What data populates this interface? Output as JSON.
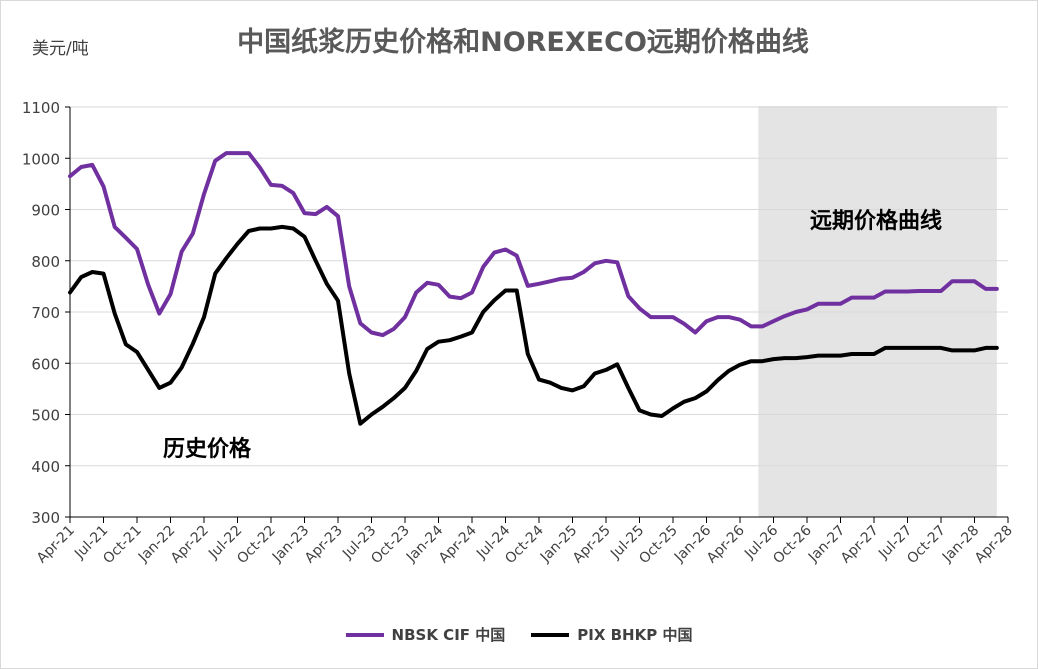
{
  "title": "中国纸浆历史价格和NOREXECO远期价格曲线",
  "unit_label": "美元/吨",
  "annotations": {
    "history": "历史价格",
    "forward": "远期价格曲线"
  },
  "colors": {
    "nbsk": "#7030a0",
    "pix": "#000000",
    "forward_shade": "#e4e4e4",
    "grid": "#d9d9d9"
  },
  "chart_data": {
    "type": "line",
    "title": "中国纸浆历史价格和NOREXECO远期价格曲线",
    "ylabel": "美元/吨",
    "ylim": [
      300,
      1100
    ],
    "yticks": [
      300,
      400,
      500,
      600,
      700,
      800,
      900,
      1000,
      1100
    ],
    "grid": true,
    "legend_position": "bottom",
    "xtick_labels": [
      "Apr-21",
      "Jul-21",
      "Oct-21",
      "Jan-22",
      "Apr-22",
      "Jul-22",
      "Oct-22",
      "Jan-23",
      "Apr-23",
      "Jul-23",
      "Oct-23",
      "Jan-24",
      "Apr-24",
      "Jul-24",
      "Oct-24",
      "Jan-25",
      "Apr-25",
      "Jul-25",
      "Oct-25",
      "Jan-26",
      "Apr-26",
      "Jul-26",
      "Oct-26",
      "Jan-27",
      "Apr-27",
      "Jul-27",
      "Oct-27",
      "Jan-28",
      "Apr-28"
    ],
    "forward_region": [
      "Jun-26",
      "Mar-28"
    ],
    "series": [
      {
        "name": "NBSK CIF 中国",
        "x": [
          "Apr-21",
          "May-21",
          "Jun-21",
          "Jul-21",
          "Aug-21",
          "Sep-21",
          "Oct-21",
          "Nov-21",
          "Dec-21",
          "Jan-22",
          "Feb-22",
          "Mar-22",
          "Apr-22",
          "May-22",
          "Jun-22",
          "Jul-22",
          "Aug-22",
          "Sep-22",
          "Oct-22",
          "Nov-22",
          "Dec-22",
          "Jan-23",
          "Feb-23",
          "Mar-23",
          "Apr-23",
          "May-23",
          "Jun-23",
          "Jul-23",
          "Aug-23",
          "Sep-23",
          "Oct-23",
          "Nov-23",
          "Dec-23",
          "Jan-24",
          "Feb-24",
          "Mar-24",
          "Apr-24",
          "May-24",
          "Jun-24",
          "Jul-24",
          "Aug-24",
          "Sep-24",
          "Oct-24",
          "Nov-24",
          "Dec-24",
          "Jan-25",
          "Feb-25",
          "Mar-25",
          "Apr-25",
          "May-25",
          "Jun-25",
          "Jul-25",
          "Aug-25",
          "Sep-25",
          "Oct-25",
          "Nov-25",
          "Dec-25",
          "Jan-26",
          "Feb-26",
          "Mar-26",
          "Apr-26",
          "May-26",
          "Jun-26",
          "Jul-26",
          "Aug-26",
          "Sep-26",
          "Oct-26",
          "Nov-26",
          "Dec-26",
          "Jan-27",
          "Feb-27",
          "Mar-27",
          "Apr-27",
          "May-27",
          "Jun-27",
          "Jul-27",
          "Aug-27",
          "Sep-27",
          "Oct-27",
          "Nov-27",
          "Dec-27",
          "Jan-28",
          "Feb-28",
          "Mar-28"
        ],
        "values": [
          965,
          983,
          987,
          945,
          866,
          845,
          823,
          753,
          697,
          735,
          818,
          853,
          930,
          995,
          1010,
          1010,
          1010,
          982,
          948,
          946,
          932,
          893,
          891,
          905,
          887,
          750,
          678,
          660,
          655,
          667,
          690,
          738,
          757,
          753,
          730,
          727,
          738,
          788,
          816,
          822,
          810,
          751,
          755,
          760,
          765,
          767,
          778,
          795,
          800,
          797,
          731,
          707,
          690,
          690,
          690,
          677,
          660,
          682,
          690,
          690,
          685,
          672,
          672,
          682,
          692,
          700,
          705,
          716,
          716,
          716,
          728,
          728,
          728,
          740,
          740,
          740,
          741,
          741,
          741,
          760,
          760,
          760,
          745,
          745
        ]
      },
      {
        "name": "PIX BHKP 中国",
        "x": [
          "Apr-21",
          "May-21",
          "Jun-21",
          "Jul-21",
          "Aug-21",
          "Sep-21",
          "Oct-21",
          "Nov-21",
          "Dec-21",
          "Jan-22",
          "Feb-22",
          "Mar-22",
          "Apr-22",
          "May-22",
          "Jun-22",
          "Jul-22",
          "Aug-22",
          "Sep-22",
          "Oct-22",
          "Nov-22",
          "Dec-22",
          "Jan-23",
          "Feb-23",
          "Mar-23",
          "Apr-23",
          "May-23",
          "Jun-23",
          "Jul-23",
          "Aug-23",
          "Sep-23",
          "Oct-23",
          "Nov-23",
          "Dec-23",
          "Jan-24",
          "Feb-24",
          "Mar-24",
          "Apr-24",
          "May-24",
          "Jun-24",
          "Jul-24",
          "Aug-24",
          "Sep-24",
          "Oct-24",
          "Nov-24",
          "Dec-24",
          "Jan-25",
          "Feb-25",
          "Mar-25",
          "Apr-25",
          "May-25",
          "Jun-25",
          "Jul-25",
          "Aug-25",
          "Sep-25",
          "Oct-25",
          "Nov-25",
          "Dec-25",
          "Jan-26",
          "Feb-26",
          "Mar-26",
          "Apr-26",
          "May-26",
          "Jun-26",
          "Jul-26",
          "Aug-26",
          "Sep-26",
          "Oct-26",
          "Nov-26",
          "Dec-26",
          "Jan-27",
          "Feb-27",
          "Mar-27",
          "Apr-27",
          "May-27",
          "Jun-27",
          "Jul-27",
          "Aug-27",
          "Sep-27",
          "Oct-27",
          "Nov-27",
          "Dec-27",
          "Jan-28",
          "Feb-28",
          "Mar-28"
        ],
        "values": [
          738,
          768,
          778,
          775,
          697,
          637,
          622,
          587,
          552,
          562,
          592,
          638,
          690,
          775,
          805,
          833,
          858,
          863,
          863,
          866,
          863,
          847,
          800,
          755,
          722,
          580,
          482,
          500,
          515,
          532,
          552,
          585,
          628,
          642,
          645,
          652,
          660,
          700,
          723,
          742,
          742,
          618,
          568,
          562,
          552,
          547,
          555,
          580,
          587,
          598,
          552,
          508,
          500,
          497,
          512,
          525,
          532,
          545,
          567,
          585,
          597,
          604,
          604,
          608,
          610,
          610,
          612,
          615,
          615,
          615,
          618,
          618,
          618,
          630,
          630,
          630,
          630,
          630,
          630,
          625,
          625,
          625,
          630,
          630
        ]
      }
    ]
  }
}
